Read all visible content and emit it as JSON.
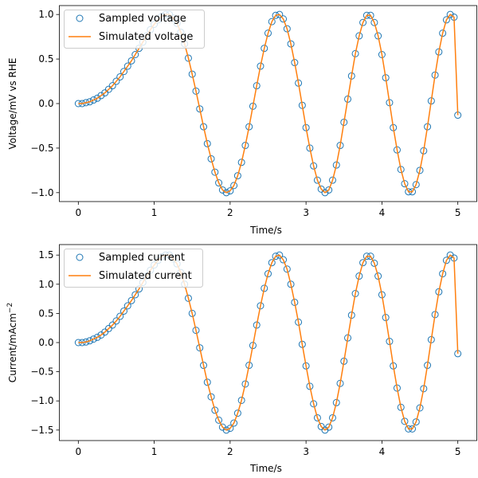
{
  "colors": {
    "sampled": "#1f77b4",
    "simulated": "#ff7f0e"
  },
  "chart_data": [
    {
      "type": "line",
      "xlabel": "Time/s",
      "ylabel": "Voltage/mV vs RHE",
      "xlim": [
        -0.25,
        5.25
      ],
      "ylim": [
        -1.1,
        1.1
      ],
      "xticks": [
        0,
        1,
        2,
        3,
        4,
        5
      ],
      "yticks": [
        -1.0,
        -0.5,
        0.0,
        0.5,
        1.0
      ],
      "xtick_labels": [
        "0",
        "1",
        "2",
        "3",
        "4",
        "5"
      ],
      "ytick_labels": [
        "−1.0",
        "−0.5",
        "0.0",
        "0.5",
        "1.0"
      ],
      "legend": {
        "placement": "top-left",
        "entries": [
          "Sampled voltage",
          "Simulated voltage"
        ]
      },
      "grid": false,
      "series": [
        {
          "name": "Sampled voltage",
          "style": "markers",
          "x": [
            0.0,
            0.05,
            0.1,
            0.15,
            0.2,
            0.25,
            0.3,
            0.35,
            0.4,
            0.45,
            0.5,
            0.55,
            0.6,
            0.65,
            0.7,
            0.75,
            0.8,
            0.85,
            0.9,
            0.95,
            1.0,
            1.05,
            1.1,
            1.15,
            1.2,
            1.25,
            1.3,
            1.35,
            1.4,
            1.45,
            1.5,
            1.55,
            1.6,
            1.65,
            1.7,
            1.75,
            1.8,
            1.85,
            1.9,
            1.95,
            2.0,
            2.05,
            2.1,
            2.15,
            2.2,
            2.25,
            2.3,
            2.35,
            2.4,
            2.45,
            2.5,
            2.55,
            2.6,
            2.65,
            2.7,
            2.75,
            2.8,
            2.85,
            2.9,
            2.95,
            3.0,
            3.05,
            3.1,
            3.15,
            3.2,
            3.25,
            3.3,
            3.35,
            3.4,
            3.45,
            3.5,
            3.55,
            3.6,
            3.65,
            3.7,
            3.75,
            3.8,
            3.85,
            3.9,
            3.95,
            4.0,
            4.05,
            4.1,
            4.15,
            4.2,
            4.25,
            4.3,
            4.35,
            4.4,
            4.45,
            4.5,
            4.55,
            4.6,
            4.65,
            4.7,
            4.75,
            4.8,
            4.85,
            4.9,
            4.95,
            5.0
          ],
          "y": [
            0.0,
            0.0,
            0.01,
            0.02,
            0.04,
            0.06,
            0.09,
            0.12,
            0.16,
            0.2,
            0.25,
            0.3,
            0.36,
            0.42,
            0.48,
            0.55,
            0.62,
            0.69,
            0.76,
            0.83,
            0.89,
            0.94,
            0.98,
            1.0,
            1.0,
            0.96,
            0.9,
            0.8,
            0.67,
            0.51,
            0.33,
            0.14,
            -0.06,
            -0.26,
            -0.45,
            -0.62,
            -0.77,
            -0.89,
            -0.97,
            -1.0,
            -0.98,
            -0.92,
            -0.81,
            -0.66,
            -0.47,
            -0.26,
            -0.03,
            0.2,
            0.42,
            0.62,
            0.79,
            0.92,
            0.99,
            1.0,
            0.95,
            0.84,
            0.67,
            0.46,
            0.23,
            -0.02,
            -0.27,
            -0.5,
            -0.7,
            -0.86,
            -0.96,
            -1.0,
            -0.97,
            -0.86,
            -0.69,
            -0.47,
            -0.21,
            0.05,
            0.31,
            0.56,
            0.76,
            0.91,
            0.99,
            0.99,
            0.91,
            0.76,
            0.55,
            0.29,
            0.01,
            -0.27,
            -0.52,
            -0.74,
            -0.9,
            -0.99,
            -0.99,
            -0.91,
            -0.75,
            -0.53,
            -0.26,
            0.03,
            0.32,
            0.58,
            0.79,
            0.94,
            1.0,
            0.97,
            -0.13
          ]
        },
        {
          "name": "Simulated voltage",
          "style": "line",
          "x": [
            0.0,
            0.05,
            0.1,
            0.15,
            0.2,
            0.25,
            0.3,
            0.35,
            0.4,
            0.45,
            0.5,
            0.55,
            0.6,
            0.65,
            0.7,
            0.75,
            0.8,
            0.85,
            0.9,
            0.95,
            1.0,
            1.05,
            1.1,
            1.15,
            1.2,
            1.25,
            1.3,
            1.35,
            1.4,
            1.45,
            1.5,
            1.55,
            1.6,
            1.65,
            1.7,
            1.75,
            1.8,
            1.85,
            1.9,
            1.95,
            2.0,
            2.05,
            2.1,
            2.15,
            2.2,
            2.25,
            2.3,
            2.35,
            2.4,
            2.45,
            2.5,
            2.55,
            2.6,
            2.65,
            2.7,
            2.75,
            2.8,
            2.85,
            2.9,
            2.95,
            3.0,
            3.05,
            3.1,
            3.15,
            3.2,
            3.25,
            3.3,
            3.35,
            3.4,
            3.45,
            3.5,
            3.55,
            3.6,
            3.65,
            3.7,
            3.75,
            3.8,
            3.85,
            3.9,
            3.95,
            4.0,
            4.05,
            4.1,
            4.15,
            4.2,
            4.25,
            4.3,
            4.35,
            4.4,
            4.45,
            4.5,
            4.55,
            4.6,
            4.65,
            4.7,
            4.75,
            4.8,
            4.85,
            4.9,
            4.95,
            5.0
          ],
          "y": [
            0.0,
            0.0,
            0.01,
            0.02,
            0.04,
            0.06,
            0.09,
            0.12,
            0.16,
            0.2,
            0.25,
            0.3,
            0.36,
            0.42,
            0.48,
            0.55,
            0.62,
            0.69,
            0.76,
            0.83,
            0.89,
            0.94,
            0.98,
            1.0,
            1.0,
            0.96,
            0.9,
            0.8,
            0.67,
            0.51,
            0.33,
            0.14,
            -0.06,
            -0.26,
            -0.45,
            -0.62,
            -0.77,
            -0.89,
            -0.97,
            -1.0,
            -0.98,
            -0.92,
            -0.81,
            -0.66,
            -0.47,
            -0.26,
            -0.03,
            0.2,
            0.42,
            0.62,
            0.79,
            0.92,
            0.99,
            1.0,
            0.95,
            0.84,
            0.67,
            0.46,
            0.23,
            -0.02,
            -0.27,
            -0.5,
            -0.7,
            -0.86,
            -0.96,
            -1.0,
            -0.97,
            -0.86,
            -0.69,
            -0.47,
            -0.21,
            0.05,
            0.31,
            0.56,
            0.76,
            0.91,
            0.99,
            0.99,
            0.91,
            0.76,
            0.55,
            0.29,
            0.01,
            -0.27,
            -0.52,
            -0.74,
            -0.9,
            -0.99,
            -0.99,
            -0.91,
            -0.75,
            -0.53,
            -0.26,
            0.03,
            0.32,
            0.58,
            0.79,
            0.94,
            1.0,
            0.97,
            -0.13
          ]
        }
      ]
    },
    {
      "type": "line",
      "xlabel": "Time/s",
      "ylabel": "Current/mAcm",
      "ylabel_superscript": "−2",
      "xlim": [
        -0.25,
        5.25
      ],
      "ylim": [
        -1.68,
        1.68
      ],
      "xticks": [
        0,
        1,
        2,
        3,
        4,
        5
      ],
      "yticks": [
        -1.5,
        -1.0,
        -0.5,
        0.0,
        0.5,
        1.0,
        1.5
      ],
      "xtick_labels": [
        "0",
        "1",
        "2",
        "3",
        "4",
        "5"
      ],
      "ytick_labels": [
        "−1.5",
        "−1.0",
        "−0.5",
        "0.0",
        "0.5",
        "1.0",
        "1.5"
      ],
      "legend": {
        "placement": "top-left",
        "entries": [
          "Sampled current",
          "Simulated current"
        ]
      },
      "grid": false,
      "series": [
        {
          "name": "Sampled current",
          "style": "markers",
          "x": [
            0.0,
            0.05,
            0.1,
            0.15,
            0.2,
            0.25,
            0.3,
            0.35,
            0.4,
            0.45,
            0.5,
            0.55,
            0.6,
            0.65,
            0.7,
            0.75,
            0.8,
            0.85,
            0.9,
            0.95,
            1.0,
            1.05,
            1.1,
            1.15,
            1.2,
            1.25,
            1.3,
            1.35,
            1.4,
            1.45,
            1.5,
            1.55,
            1.6,
            1.65,
            1.7,
            1.75,
            1.8,
            1.85,
            1.9,
            1.95,
            2.0,
            2.05,
            2.1,
            2.15,
            2.2,
            2.25,
            2.3,
            2.35,
            2.4,
            2.45,
            2.5,
            2.55,
            2.6,
            2.65,
            2.7,
            2.75,
            2.8,
            2.85,
            2.9,
            2.95,
            3.0,
            3.05,
            3.1,
            3.15,
            3.2,
            3.25,
            3.3,
            3.35,
            3.4,
            3.45,
            3.5,
            3.55,
            3.6,
            3.65,
            3.7,
            3.75,
            3.8,
            3.85,
            3.9,
            3.95,
            4.0,
            4.05,
            4.1,
            4.15,
            4.2,
            4.25,
            4.3,
            4.35,
            4.4,
            4.45,
            4.5,
            4.55,
            4.6,
            4.65,
            4.7,
            4.75,
            4.8,
            4.85,
            4.9,
            4.95,
            5.0
          ],
          "y": [
            0.0,
            0.0,
            0.01,
            0.03,
            0.06,
            0.09,
            0.13,
            0.18,
            0.24,
            0.3,
            0.37,
            0.45,
            0.54,
            0.63,
            0.72,
            0.82,
            0.92,
            1.03,
            1.14,
            1.24,
            1.33,
            1.41,
            1.47,
            1.5,
            1.5,
            1.44,
            1.35,
            1.2,
            1.0,
            0.76,
            0.5,
            0.21,
            -0.09,
            -0.39,
            -0.68,
            -0.93,
            -1.16,
            -1.33,
            -1.45,
            -1.5,
            -1.47,
            -1.38,
            -1.21,
            -0.99,
            -0.71,
            -0.39,
            -0.05,
            0.3,
            0.63,
            0.93,
            1.18,
            1.37,
            1.48,
            1.5,
            1.42,
            1.26,
            1.0,
            0.69,
            0.35,
            -0.03,
            -0.4,
            -0.75,
            -1.05,
            -1.29,
            -1.44,
            -1.5,
            -1.45,
            -1.29,
            -1.03,
            -0.7,
            -0.32,
            0.08,
            0.47,
            0.84,
            1.14,
            1.37,
            1.48,
            1.48,
            1.36,
            1.14,
            0.82,
            0.43,
            0.02,
            -0.4,
            -0.78,
            -1.11,
            -1.35,
            -1.48,
            -1.48,
            -1.36,
            -1.12,
            -0.79,
            -0.39,
            0.05,
            0.48,
            0.87,
            1.18,
            1.41,
            1.5,
            1.45,
            -0.19
          ]
        },
        {
          "name": "Simulated current",
          "style": "line",
          "x": [
            0.0,
            0.05,
            0.1,
            0.15,
            0.2,
            0.25,
            0.3,
            0.35,
            0.4,
            0.45,
            0.5,
            0.55,
            0.6,
            0.65,
            0.7,
            0.75,
            0.8,
            0.85,
            0.9,
            0.95,
            1.0,
            1.05,
            1.1,
            1.15,
            1.2,
            1.25,
            1.3,
            1.35,
            1.4,
            1.45,
            1.5,
            1.55,
            1.6,
            1.65,
            1.7,
            1.75,
            1.8,
            1.85,
            1.9,
            1.95,
            2.0,
            2.05,
            2.1,
            2.15,
            2.2,
            2.25,
            2.3,
            2.35,
            2.4,
            2.45,
            2.5,
            2.55,
            2.6,
            2.65,
            2.7,
            2.75,
            2.8,
            2.85,
            2.9,
            2.95,
            3.0,
            3.05,
            3.1,
            3.15,
            3.2,
            3.25,
            3.3,
            3.35,
            3.4,
            3.45,
            3.5,
            3.55,
            3.6,
            3.65,
            3.7,
            3.75,
            3.8,
            3.85,
            3.9,
            3.95,
            4.0,
            4.05,
            4.1,
            4.15,
            4.2,
            4.25,
            4.3,
            4.35,
            4.4,
            4.45,
            4.5,
            4.55,
            4.6,
            4.65,
            4.7,
            4.75,
            4.8,
            4.85,
            4.9,
            4.95,
            5.0
          ],
          "y": [
            0.0,
            0.0,
            0.01,
            0.03,
            0.06,
            0.09,
            0.13,
            0.18,
            0.24,
            0.3,
            0.37,
            0.45,
            0.54,
            0.63,
            0.72,
            0.82,
            0.92,
            1.03,
            1.14,
            1.24,
            1.33,
            1.41,
            1.47,
            1.5,
            1.5,
            1.44,
            1.35,
            1.2,
            1.0,
            0.76,
            0.5,
            0.21,
            -0.09,
            -0.39,
            -0.68,
            -0.93,
            -1.16,
            -1.33,
            -1.45,
            -1.5,
            -1.47,
            -1.38,
            -1.21,
            -0.99,
            -0.71,
            -0.39,
            -0.05,
            0.3,
            0.63,
            0.93,
            1.18,
            1.37,
            1.48,
            1.5,
            1.42,
            1.26,
            1.0,
            0.69,
            0.35,
            -0.03,
            -0.4,
            -0.75,
            -1.05,
            -1.29,
            -1.44,
            -1.5,
            -1.45,
            -1.29,
            -1.03,
            -0.7,
            -0.32,
            0.08,
            0.47,
            0.84,
            1.14,
            1.37,
            1.48,
            1.48,
            1.36,
            1.14,
            0.82,
            0.43,
            0.02,
            -0.4,
            -0.78,
            -1.11,
            -1.35,
            -1.48,
            -1.48,
            -1.36,
            -1.12,
            -0.79,
            -0.39,
            0.05,
            0.48,
            0.87,
            1.18,
            1.41,
            1.5,
            1.45,
            -0.19
          ]
        }
      ]
    }
  ]
}
